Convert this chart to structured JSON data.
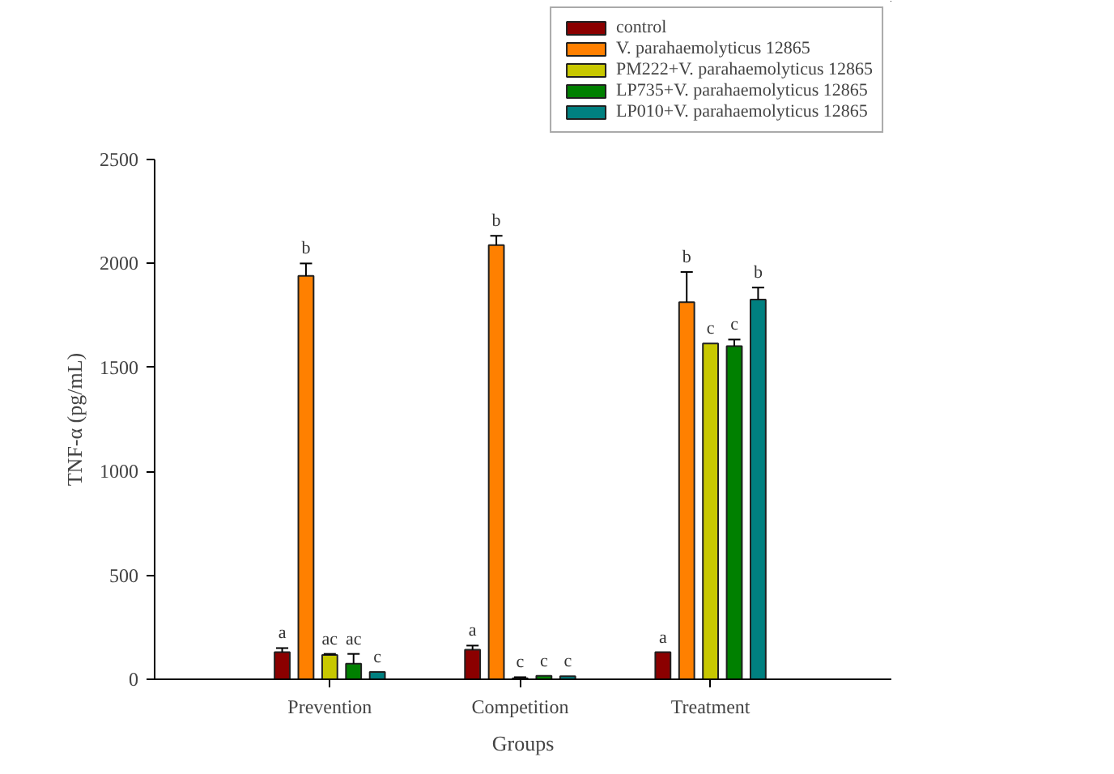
{
  "chart_data": {
    "type": "bar",
    "xlabel": "Groups",
    "ylabel": "TNF-α (pg/mL)",
    "categories": [
      "Prevention",
      "Competition",
      "Treatment"
    ],
    "series": [
      {
        "name": "control",
        "color": "#8b0000",
        "values": [
          130,
          142,
          130
        ],
        "errors": [
          20,
          20,
          null
        ],
        "value_labels": [
          "a",
          "a",
          "a"
        ]
      },
      {
        "name": "V. parahaemolyticus 12865",
        "color": "#ff8000",
        "values": [
          1940,
          2088,
          1814
        ],
        "errors": [
          60,
          45,
          145
        ],
        "value_labels": [
          "b",
          "b",
          "b"
        ]
      },
      {
        "name": "PM222+V. parahaemolyticus 12865",
        "color": "#c8c800",
        "values": [
          117,
          5,
          1615
        ],
        "errors": [
          5,
          5,
          null
        ],
        "value_labels": [
          "ac",
          "c",
          "c"
        ]
      },
      {
        "name": "LP735+V. parahaemolyticus 12865",
        "color": "#008000",
        "values": [
          75,
          17,
          1602
        ],
        "errors": [
          47,
          null,
          32
        ],
        "value_labels": [
          "ac",
          "c",
          "c"
        ]
      },
      {
        "name": "LP010+V. parahaemolyticus 12865",
        "color": "#008080",
        "values": [
          35,
          15,
          1826
        ],
        "errors": [
          null,
          null,
          58
        ],
        "value_labels": [
          "c",
          "c",
          "b"
        ]
      }
    ],
    "ylim": [
      0,
      2500
    ],
    "yticks": [
      0,
      500,
      1000,
      1500,
      2000,
      2500
    ],
    "grid": false,
    "legend": "top right"
  }
}
